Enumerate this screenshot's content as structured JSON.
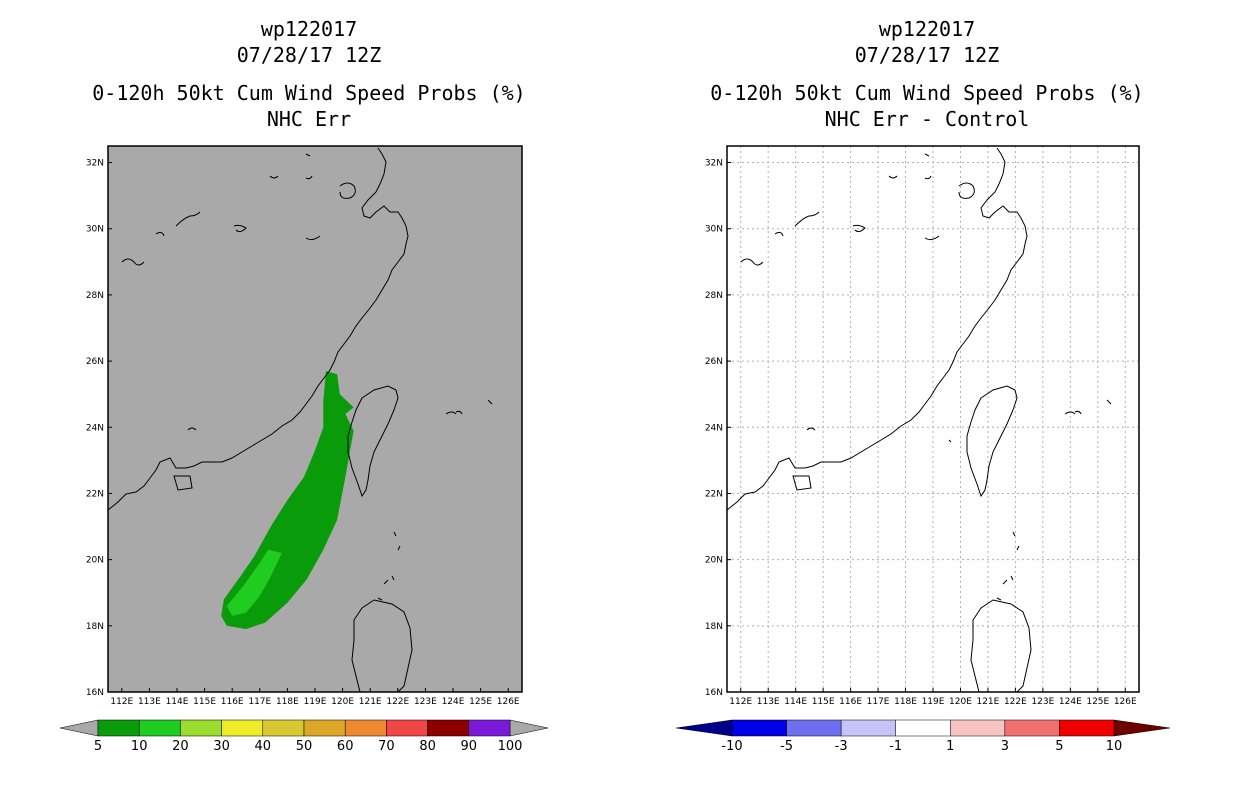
{
  "panels": [
    {
      "id": "left",
      "title_lines": [
        "wp122017",
        "07/28/17 12Z",
        "0-120h 50kt Cum Wind Speed Probs (%)",
        "NHC Err"
      ],
      "background": "#a9a9a9",
      "gridlines": false,
      "colorbar": {
        "labels": [
          "5",
          "10",
          "20",
          "30",
          "40",
          "50",
          "60",
          "70",
          "80",
          "90",
          "100"
        ],
        "colors": [
          "#0a9b0a",
          "#1fcc1f",
          "#9bdc2e",
          "#ecec28",
          "#d9c832",
          "#dca628",
          "#ee8a32",
          "#f04646",
          "#8e0000",
          "#7a1ad8"
        ],
        "arrow_left": "#a9a9a9",
        "arrow_right": "#a9a9a9"
      }
    },
    {
      "id": "right",
      "title_lines": [
        "wp122017",
        "07/28/17 12Z",
        "0-120h 50kt Cum Wind Speed Probs (%)",
        "NHC Err - Control"
      ],
      "background": "#ffffff",
      "gridlines": true,
      "colorbar": {
        "labels": [
          "-10",
          "-5",
          "-3",
          "-1",
          "1",
          "3",
          "5",
          "10"
        ],
        "colors": [
          "#0000e6",
          "#6f6ff0",
          "#c4c4f6",
          "#ffffff",
          "#f7c4c4",
          "#f07070",
          "#f00000"
        ],
        "arrow_left": "#00008b",
        "arrow_right": "#6e0000"
      }
    }
  ],
  "map": {
    "lat_labels": [
      "32N",
      "30N",
      "28N",
      "26N",
      "24N",
      "22N",
      "20N",
      "18N",
      "16N"
    ],
    "lat_values": [
      32,
      30,
      28,
      26,
      24,
      22,
      20,
      18,
      16
    ],
    "lon_labels": [
      "112E",
      "113E",
      "114E",
      "115E",
      "116E",
      "117E",
      "118E",
      "119E",
      "120E",
      "121E",
      "122E",
      "123E",
      "124E",
      "125E",
      "126E"
    ],
    "lon_values": [
      112,
      113,
      114,
      115,
      116,
      117,
      118,
      119,
      120,
      121,
      122,
      123,
      124,
      125,
      126
    ],
    "lon_range": [
      111.5,
      126.5
    ],
    "lat_range": [
      16,
      32.5
    ]
  },
  "probability_field": {
    "band_5_color": "#0a9b0a",
    "band_10_color": "#1fcc1f",
    "band_5_lonlat": [
      [
        119.4,
        25.7
      ],
      [
        119.8,
        25.6
      ],
      [
        119.9,
        25.0
      ],
      [
        120.4,
        24.6
      ],
      [
        120.1,
        24.4
      ],
      [
        120.4,
        23.9
      ],
      [
        120.1,
        22.5
      ],
      [
        119.8,
        21.2
      ],
      [
        119.3,
        20.3
      ],
      [
        118.7,
        19.4
      ],
      [
        118.0,
        18.7
      ],
      [
        117.2,
        18.1
      ],
      [
        116.5,
        17.9
      ],
      [
        115.8,
        18.0
      ],
      [
        115.6,
        18.3
      ],
      [
        115.7,
        18.8
      ],
      [
        116.3,
        19.5
      ],
      [
        116.8,
        20.1
      ],
      [
        117.4,
        21.0
      ],
      [
        118.0,
        21.8
      ],
      [
        118.6,
        22.5
      ],
      [
        119.0,
        23.3
      ],
      [
        119.3,
        24.0
      ],
      [
        119.3,
        24.8
      ]
    ],
    "band_10_lonlat": [
      [
        117.8,
        20.2
      ],
      [
        117.4,
        19.5
      ],
      [
        117.0,
        18.9
      ],
      [
        116.5,
        18.4
      ],
      [
        116.0,
        18.3
      ],
      [
        115.8,
        18.6
      ],
      [
        116.4,
        19.2
      ],
      [
        117.0,
        19.9
      ],
      [
        117.3,
        20.3
      ]
    ]
  }
}
